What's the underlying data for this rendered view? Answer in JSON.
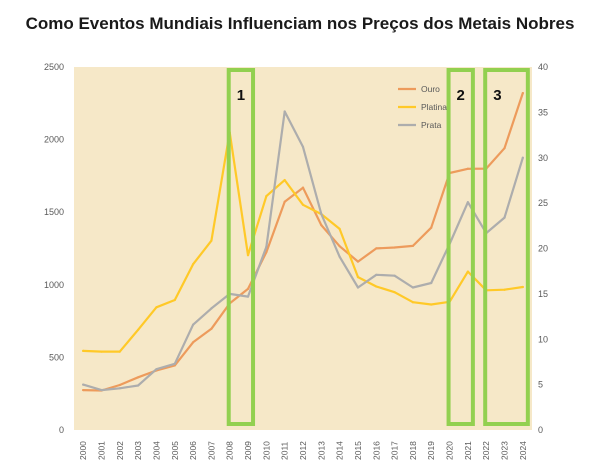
{
  "chart_data": {
    "type": "line",
    "title": "Como Eventos Mundiais Influenciam nos Preços dos Metais Nobres",
    "categories": [
      "2000",
      "2001",
      "2002",
      "2003",
      "2004",
      "2005",
      "2006",
      "2007",
      "2008",
      "2009",
      "2010",
      "2011",
      "2012",
      "2013",
      "2014",
      "2015",
      "2016",
      "2017",
      "2018",
      "2019",
      "2020",
      "2021",
      "2022",
      "2023",
      "2024"
    ],
    "y_left": {
      "range": [
        0,
        2500
      ],
      "ticks": [
        0,
        500,
        1000,
        1500,
        2000,
        2500
      ]
    },
    "y_right": {
      "range": [
        0,
        40
      ],
      "ticks": [
        0,
        5,
        10,
        15,
        20,
        25,
        30,
        35,
        40
      ]
    },
    "legend_position": "top-right",
    "series": [
      {
        "name": "Ouro",
        "axis": "left",
        "color": "#ed9b5c",
        "values": [
          275,
          272,
          310,
          363,
          410,
          445,
          604,
          697,
          872,
          972,
          1225,
          1572,
          1669,
          1411,
          1266,
          1160,
          1251,
          1257,
          1268,
          1393,
          1770,
          1799,
          1800,
          1941,
          2320
        ]
      },
      {
        "name": "Platina",
        "axis": "left",
        "color": "#ffc928",
        "values": [
          545,
          540,
          540,
          690,
          845,
          895,
          1142,
          1304,
          2050,
          1204,
          1611,
          1721,
          1551,
          1487,
          1385,
          1053,
          988,
          949,
          880,
          864,
          883,
          1091,
          962,
          966,
          985
        ]
      },
      {
        "name": "Prata",
        "axis": "right",
        "color": "#adadad",
        "values": [
          5.0,
          4.4,
          4.6,
          4.9,
          6.7,
          7.3,
          11.6,
          13.4,
          15.0,
          14.7,
          20.2,
          35.1,
          31.2,
          23.8,
          19.1,
          15.7,
          17.1,
          17.0,
          15.7,
          16.2,
          20.5,
          25.1,
          21.7,
          23.4,
          30.0
        ]
      }
    ],
    "annotations": [
      {
        "label": "1",
        "span": [
          "2008",
          "2009"
        ]
      },
      {
        "label": "2",
        "span": [
          "2020",
          "2021"
        ]
      },
      {
        "label": "3",
        "span": [
          "2022",
          "2024"
        ]
      }
    ],
    "colors": {
      "background": "#f6e8c8",
      "highlight_box": "#92d050",
      "axis_text": "#595959"
    }
  }
}
